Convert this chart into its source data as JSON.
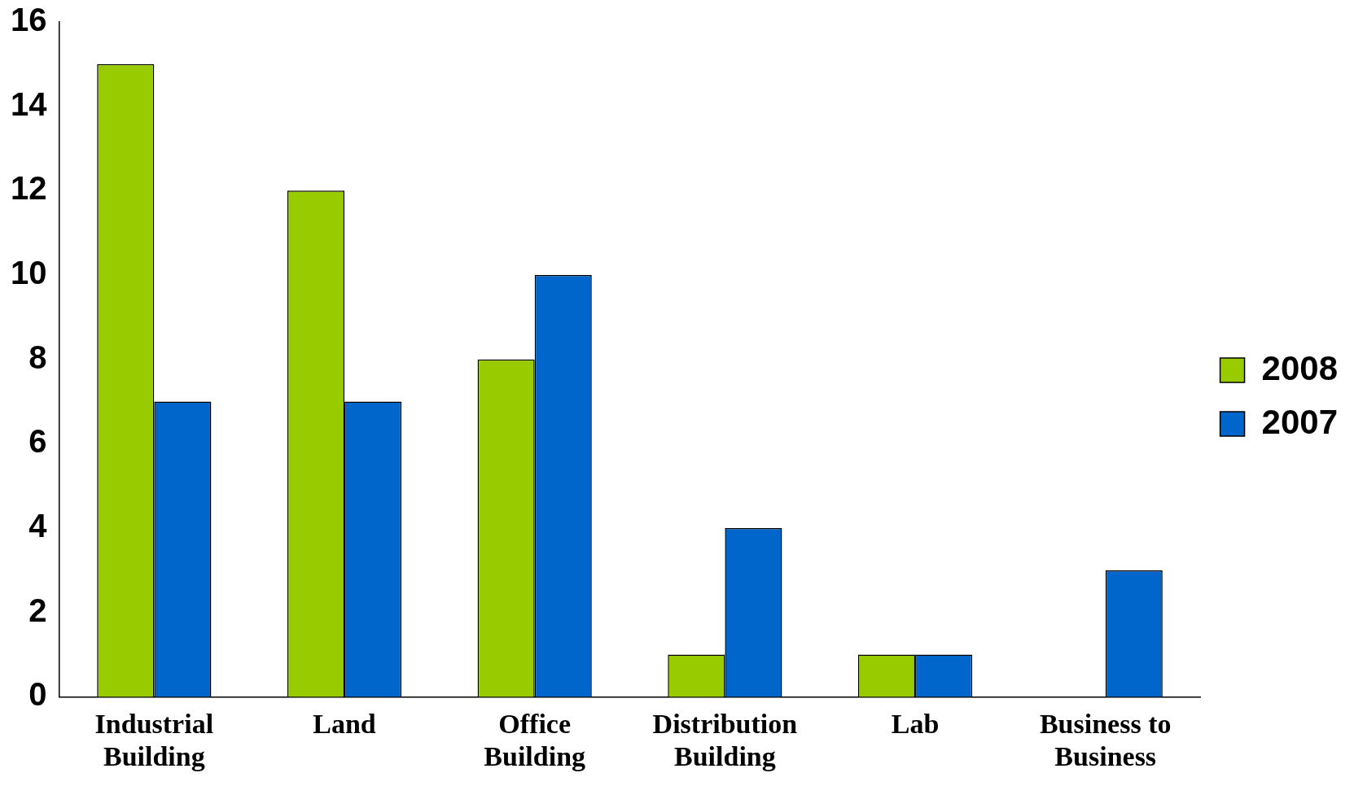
{
  "chart_data": {
    "type": "bar",
    "categories": [
      "Industrial Building",
      "Land",
      "Office Building",
      "Distribution Building",
      "Lab",
      "Business to Business"
    ],
    "series": [
      {
        "name": "2008",
        "color": "#99cc00",
        "values": [
          15,
          12,
          8,
          1,
          1,
          0
        ]
      },
      {
        "name": "2007",
        "color": "#0066cc",
        "values": [
          7,
          7,
          10,
          4,
          1,
          3
        ]
      }
    ],
    "ylim": [
      0,
      16
    ],
    "yticks": [
      0,
      2,
      4,
      6,
      8,
      10,
      12,
      14,
      16
    ],
    "grid": false,
    "legend": "right"
  }
}
